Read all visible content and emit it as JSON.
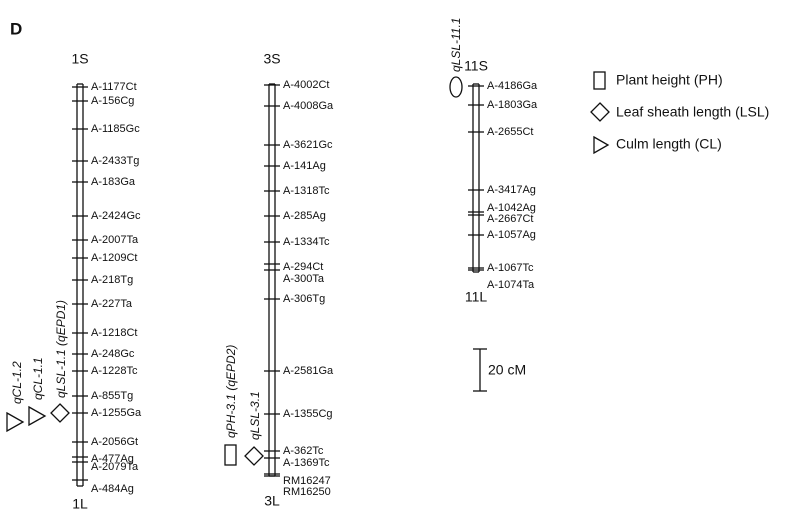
{
  "panel": "D",
  "chromosomes": [
    {
      "top": "1S",
      "bottom": "1L",
      "markers": [
        "A-1177Ct",
        "A-156Cg",
        "A-1185Gc",
        "A-2433Tg",
        "A-183Ga",
        "A-2424Gc",
        "A-2007Ta",
        "A-1209Ct",
        "A-218Tg",
        "A-227Ta",
        "A-1218Ct",
        "A-248Gc",
        "A-1228Tc",
        "A-855Tg",
        "A-1255Ga",
        "A-2056Gt",
        "A-477Ag",
        "A-2079Ta",
        "A-484Ag"
      ]
    },
    {
      "top": "3S",
      "bottom": "3L",
      "markers": [
        "A-4002Ct",
        "A-4008Ga",
        "A-3621Gc",
        "A-141Ag",
        "A-1318Tc",
        "A-285Ag",
        "A-1334Tc",
        "A-294Ct",
        "A-300Ta",
        "A-306Tg",
        "A-2581Ga",
        "A-1355Cg",
        "A-362Tc",
        "A-1369Tc",
        "RM16247",
        "RM16250"
      ]
    },
    {
      "top": "11S",
      "bottom": "11L",
      "markers": [
        "A-4186Ga",
        "A-1803Ga",
        "A-2655Ct",
        "A-3417Ag",
        "A-1042Ag",
        "A-2667Ct",
        "A-1057Ag",
        "A-1067Tc",
        "A-1074Ta"
      ]
    }
  ],
  "qtls": [
    "qCL-1.2",
    "qCL-1.1",
    "qLSL-1.1 (qEPD1)",
    "qPH-3.1 (qEPD2)",
    "qLSL-3.1",
    "qLSL-11.1"
  ],
  "legend": [
    "Plant height (PH)",
    "Leaf sheath length (LSL)",
    "Culm length (CL)"
  ],
  "scale_bar": "20 cM"
}
